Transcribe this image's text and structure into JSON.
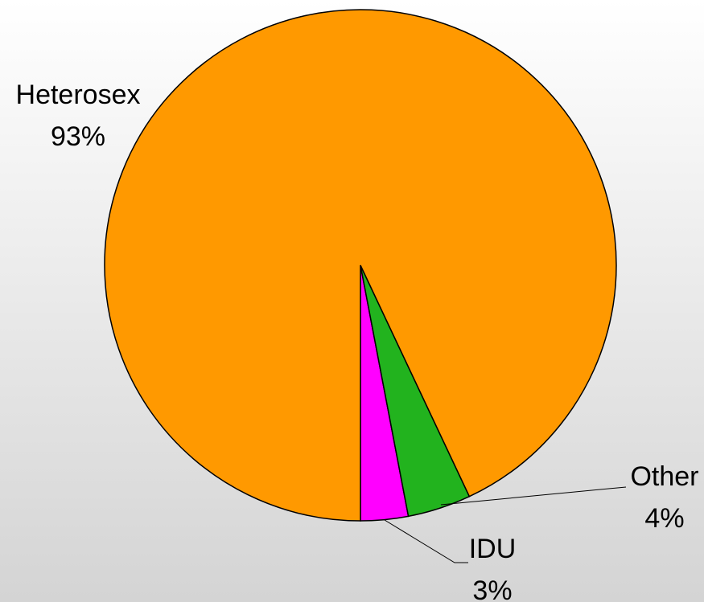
{
  "chart_data": {
    "type": "pie",
    "categories": [
      "IDU",
      "Other",
      "Heterosex"
    ],
    "values": [
      3,
      4,
      93
    ],
    "value_labels": [
      "3%",
      "4%",
      "93%"
    ],
    "colors": [
      "#ff00ff",
      "#22b31e",
      "#ff9900"
    ]
  }
}
